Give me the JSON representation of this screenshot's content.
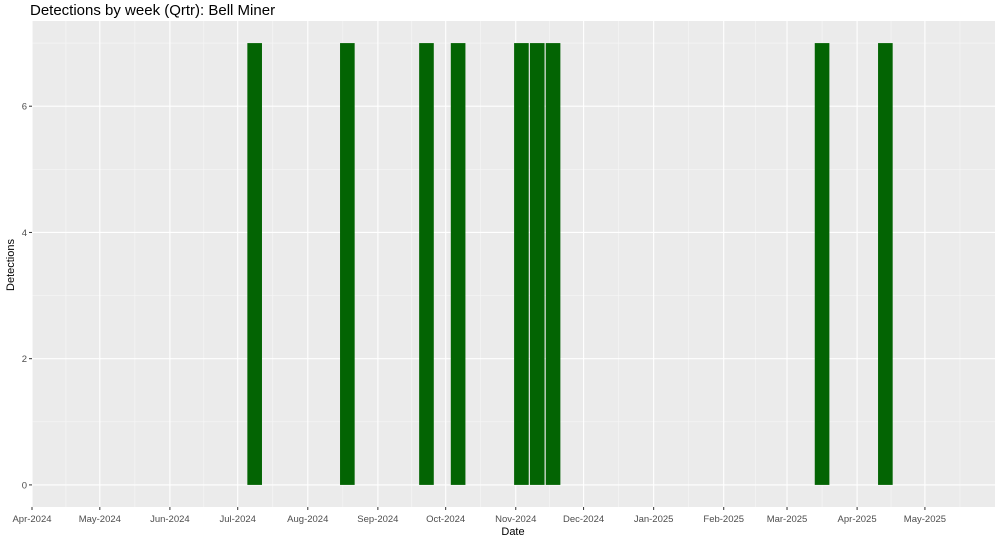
{
  "chart_data": {
    "type": "bar",
    "title": "Detections by week (Qrtr): Bell Miner",
    "xlabel": "Date",
    "ylabel": "Detections",
    "x_axis_type": "date",
    "xlim": [
      "2024-04-01",
      "2025-05-31"
    ],
    "ylim": [
      0,
      7
    ],
    "grid": true,
    "bar_color": "#036403",
    "panel_background": "#ebebeb",
    "x_tick_labels": [
      {
        "date": "2024-04-01",
        "label": "Apr-2024"
      },
      {
        "date": "2024-05-01",
        "label": "May-2024"
      },
      {
        "date": "2024-06-01",
        "label": "Jun-2024"
      },
      {
        "date": "2024-07-01",
        "label": "Jul-2024"
      },
      {
        "date": "2024-08-01",
        "label": "Aug-2024"
      },
      {
        "date": "2024-09-01",
        "label": "Sep-2024"
      },
      {
        "date": "2024-10-01",
        "label": "Oct-2024"
      },
      {
        "date": "2024-11-01",
        "label": "Nov-2024"
      },
      {
        "date": "2024-12-01",
        "label": "Dec-2024"
      },
      {
        "date": "2025-01-01",
        "label": "Jan-2025"
      },
      {
        "date": "2025-02-01",
        "label": "Feb-2025"
      },
      {
        "date": "2025-03-01",
        "label": "Mar-2025"
      },
      {
        "date": "2025-04-01",
        "label": "Apr-2025"
      },
      {
        "date": "2025-05-01",
        "label": "May-2025"
      }
    ],
    "y_ticks": [
      0,
      2,
      4,
      6
    ],
    "bars": [
      {
        "week_start": "2024-07-05",
        "week_end": "2024-07-11",
        "value": 7
      },
      {
        "week_start": "2024-08-15",
        "week_end": "2024-08-21",
        "value": 7
      },
      {
        "week_start": "2024-09-19",
        "week_end": "2024-09-25",
        "value": 7
      },
      {
        "week_start": "2024-10-03",
        "week_end": "2024-10-09",
        "value": 7
      },
      {
        "week_start": "2024-10-31",
        "week_end": "2024-11-06",
        "value": 7
      },
      {
        "week_start": "2024-11-07",
        "week_end": "2024-11-13",
        "value": 7
      },
      {
        "week_start": "2024-11-14",
        "week_end": "2024-11-20",
        "value": 7
      },
      {
        "week_start": "2025-03-13",
        "week_end": "2025-03-19",
        "value": 7
      },
      {
        "week_start": "2025-04-10",
        "week_end": "2025-04-16",
        "value": 7
      }
    ]
  }
}
